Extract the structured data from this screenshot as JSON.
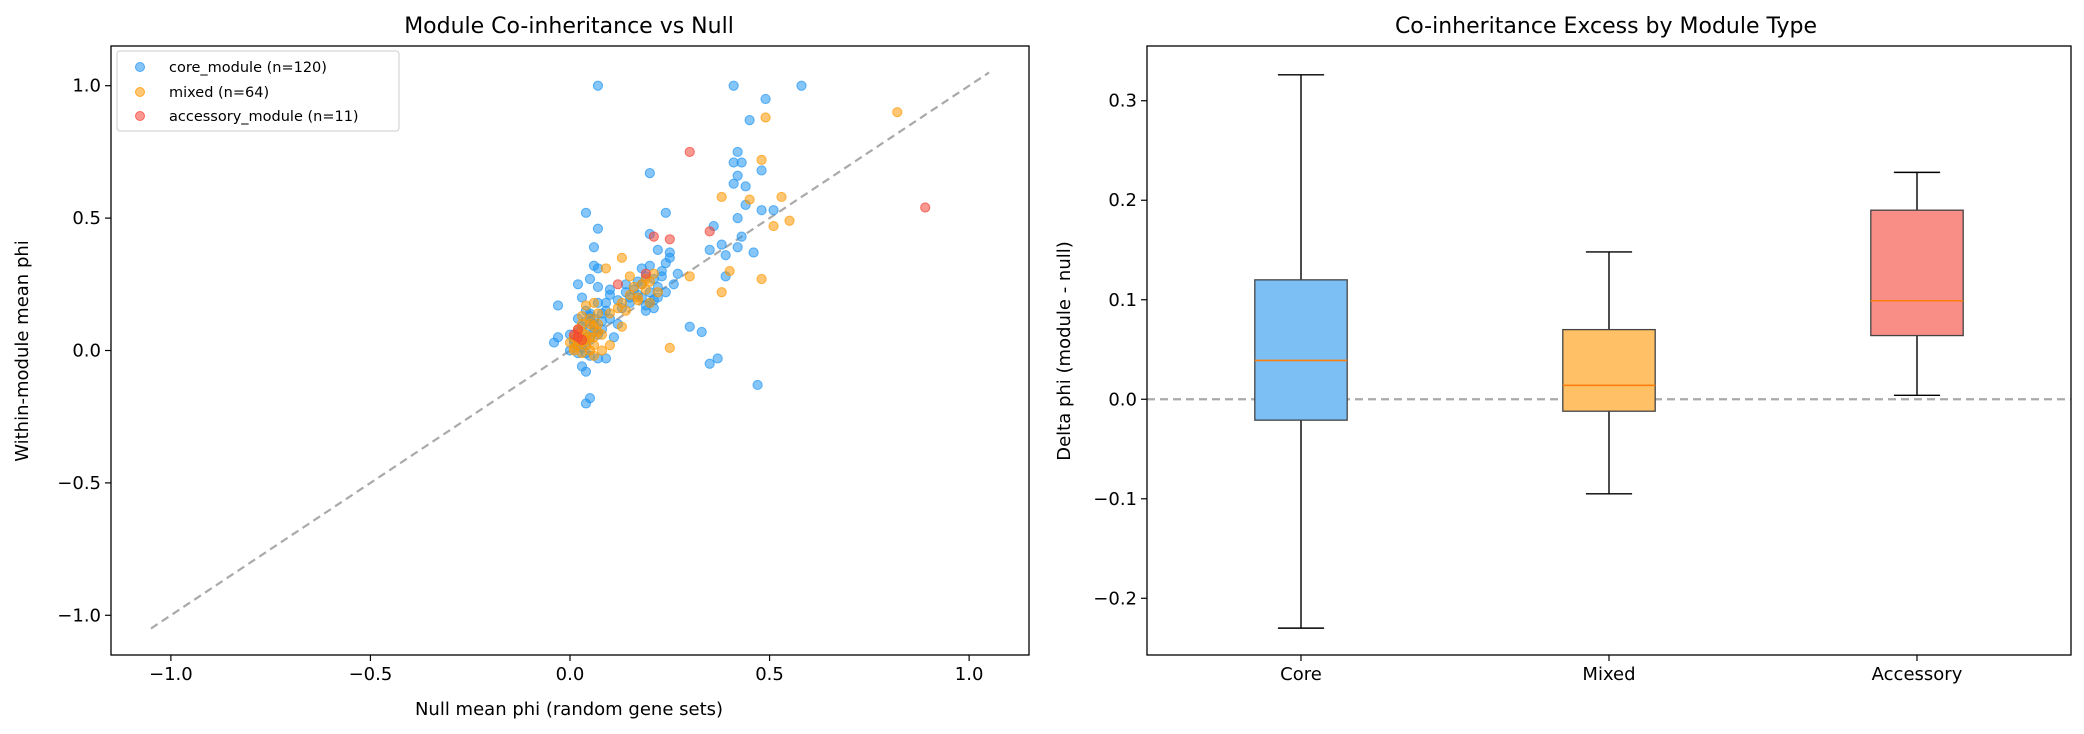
{
  "chart_data": [
    {
      "type": "scatter",
      "title": "Module Co-inheritance vs Null",
      "xlabel": "Null mean phi (random gene sets)",
      "ylabel": "Within-module mean phi",
      "xlim": [
        -1.15,
        1.15
      ],
      "ylim": [
        -1.15,
        1.15
      ],
      "xticks": [
        -1.0,
        -0.5,
        0.0,
        0.5,
        1.0
      ],
      "yticks": [
        -1.0,
        -0.5,
        0.0,
        0.5,
        1.0
      ],
      "xtick_labels": [
        "−1.0",
        "−0.5",
        "0.0",
        "0.5",
        "1.0"
      ],
      "ytick_labels": [
        "−1.0",
        "−0.5",
        "0.0",
        "0.5",
        "1.0"
      ],
      "grid": false,
      "legend_position": "upper-left",
      "reference_line": {
        "style": "dashed",
        "color": "#aaaaaa",
        "from": [
          -1.05,
          -1.05
        ],
        "to": [
          1.05,
          1.05
        ]
      },
      "series": [
        {
          "name": "core_module (n=120)",
          "color": "#2196f3",
          "points": [
            [
              0.07,
              1.0
            ],
            [
              0.41,
              1.0
            ],
            [
              0.58,
              1.0
            ],
            [
              0.49,
              0.95
            ],
            [
              0.45,
              0.87
            ],
            [
              0.42,
              0.75
            ],
            [
              0.41,
              0.71
            ],
            [
              0.43,
              0.71
            ],
            [
              0.48,
              0.68
            ],
            [
              0.2,
              0.67
            ],
            [
              0.42,
              0.66
            ],
            [
              0.41,
              0.63
            ],
            [
              0.44,
              0.62
            ],
            [
              0.44,
              0.55
            ],
            [
              0.48,
              0.53
            ],
            [
              0.51,
              0.53
            ],
            [
              0.04,
              0.52
            ],
            [
              0.24,
              0.52
            ],
            [
              0.42,
              0.5
            ],
            [
              0.07,
              0.46
            ],
            [
              0.36,
              0.47
            ],
            [
              0.2,
              0.44
            ],
            [
              0.43,
              0.43
            ],
            [
              0.38,
              0.4
            ],
            [
              0.22,
              0.38
            ],
            [
              0.25,
              0.37
            ],
            [
              0.06,
              0.39
            ],
            [
              0.42,
              0.39
            ],
            [
              0.46,
              0.37
            ],
            [
              0.39,
              0.36
            ],
            [
              0.35,
              0.38
            ],
            [
              0.24,
              0.33
            ],
            [
              0.25,
              0.35
            ],
            [
              0.06,
              0.32
            ],
            [
              0.2,
              0.32
            ],
            [
              0.23,
              0.3
            ],
            [
              0.07,
              0.31
            ],
            [
              0.19,
              0.28
            ],
            [
              0.17,
              0.26
            ],
            [
              0.39,
              0.28
            ],
            [
              0.02,
              0.25
            ],
            [
              0.05,
              0.27
            ],
            [
              0.07,
              0.24
            ],
            [
              0.1,
              0.23
            ],
            [
              0.14,
              0.22
            ],
            [
              0.17,
              0.21
            ],
            [
              0.2,
              0.22
            ],
            [
              0.22,
              0.2
            ],
            [
              0.24,
              0.22
            ],
            [
              0.18,
              0.2
            ],
            [
              0.03,
              0.2
            ],
            [
              0.07,
              0.18
            ],
            [
              0.15,
              0.18
            ],
            [
              0.21,
              0.16
            ],
            [
              0.21,
              0.19
            ],
            [
              0.19,
              0.17
            ],
            [
              0.04,
              0.15
            ],
            [
              0.05,
              0.13
            ],
            [
              0.06,
              0.12
            ],
            [
              0.08,
              0.11
            ],
            [
              0.12,
              0.1
            ],
            [
              0.02,
              0.12
            ],
            [
              0.04,
              0.11
            ],
            [
              -0.03,
              0.17
            ],
            [
              0.03,
              0.09
            ],
            [
              0.05,
              0.08
            ],
            [
              0.06,
              0.07
            ],
            [
              0.07,
              0.06
            ],
            [
              0.02,
              0.06
            ],
            [
              0.03,
              0.05
            ],
            [
              0.04,
              0.05
            ],
            [
              0.05,
              0.04
            ],
            [
              0.01,
              0.03
            ],
            [
              0.02,
              0.02
            ],
            [
              0.03,
              0.01
            ],
            [
              0.04,
              0.02
            ],
            [
              0.0,
              0.0
            ],
            [
              0.02,
              -0.01
            ],
            [
              0.04,
              -0.01
            ],
            [
              0.05,
              -0.02
            ],
            [
              0.07,
              -0.03
            ],
            [
              0.09,
              -0.03
            ],
            [
              0.03,
              -0.06
            ],
            [
              0.04,
              -0.08
            ],
            [
              0.05,
              -0.18
            ],
            [
              0.04,
              -0.2
            ],
            [
              0.3,
              0.09
            ],
            [
              0.33,
              0.07
            ],
            [
              0.35,
              -0.05
            ],
            [
              0.37,
              -0.03
            ],
            [
              0.47,
              -0.13
            ],
            [
              -0.04,
              0.03
            ],
            [
              -0.03,
              0.05
            ],
            [
              0.0,
              0.06
            ],
            [
              0.01,
              0.04
            ],
            [
              0.02,
              0.07
            ],
            [
              0.03,
              0.03
            ],
            [
              0.08,
              0.14
            ],
            [
              0.09,
              0.15
            ],
            [
              0.1,
              0.12
            ],
            [
              0.06,
              0.1
            ],
            [
              0.05,
              0.14
            ],
            [
              0.08,
              0.08
            ],
            [
              0.11,
              0.05
            ],
            [
              0.13,
              0.16
            ],
            [
              0.15,
              0.2
            ],
            [
              0.16,
              0.23
            ],
            [
              0.18,
              0.25
            ],
            [
              0.21,
              0.27
            ],
            [
              0.22,
              0.24
            ],
            [
              0.26,
              0.25
            ],
            [
              0.27,
              0.29
            ],
            [
              0.23,
              0.28
            ],
            [
              0.18,
              0.31
            ],
            [
              0.19,
              0.15
            ],
            [
              0.2,
              0.18
            ],
            [
              0.14,
              0.25
            ],
            [
              0.12,
              0.19
            ],
            [
              0.1,
              0.21
            ],
            [
              0.09,
              0.18
            ]
          ]
        },
        {
          "name": "mixed (n=64)",
          "color": "#ff9800",
          "points": [
            [
              0.82,
              0.9
            ],
            [
              0.49,
              0.88
            ],
            [
              0.48,
              0.72
            ],
            [
              0.53,
              0.58
            ],
            [
              0.45,
              0.57
            ],
            [
              0.38,
              0.58
            ],
            [
              0.55,
              0.49
            ],
            [
              0.51,
              0.47
            ],
            [
              0.13,
              0.35
            ],
            [
              0.09,
              0.31
            ],
            [
              0.4,
              0.3
            ],
            [
              0.3,
              0.28
            ],
            [
              0.48,
              0.27
            ],
            [
              0.19,
              0.27
            ],
            [
              0.2,
              0.26
            ],
            [
              0.21,
              0.29
            ],
            [
              0.18,
              0.25
            ],
            [
              0.19,
              0.23
            ],
            [
              0.16,
              0.24
            ],
            [
              0.15,
              0.21
            ],
            [
              0.38,
              0.22
            ],
            [
              0.17,
              0.19
            ],
            [
              0.13,
              0.18
            ],
            [
              0.2,
              0.18
            ],
            [
              0.14,
              0.15
            ],
            [
              0.04,
              0.17
            ],
            [
              0.06,
              0.18
            ],
            [
              0.03,
              0.13
            ],
            [
              0.07,
              0.14
            ],
            [
              0.13,
              0.09
            ],
            [
              0.03,
              0.1
            ],
            [
              0.05,
              0.12
            ],
            [
              0.06,
              0.09
            ],
            [
              0.07,
              0.07
            ],
            [
              0.08,
              0.06
            ],
            [
              0.05,
              0.05
            ],
            [
              0.04,
              0.04
            ],
            [
              0.02,
              0.06
            ],
            [
              0.03,
              0.03
            ],
            [
              0.01,
              0.05
            ],
            [
              0.02,
              0.02
            ],
            [
              0.04,
              0.02
            ],
            [
              0.0,
              0.03
            ],
            [
              0.01,
              0.0
            ],
            [
              0.03,
              -0.01
            ],
            [
              0.05,
              0.0
            ],
            [
              0.06,
              0.02
            ],
            [
              0.1,
              0.02
            ],
            [
              0.25,
              0.01
            ],
            [
              0.06,
              -0.02
            ],
            [
              0.08,
              0.0
            ],
            [
              0.02,
              0.08
            ],
            [
              0.05,
              0.1
            ],
            [
              0.17,
              0.2
            ],
            [
              0.22,
              0.22
            ],
            [
              0.15,
              0.28
            ],
            [
              0.1,
              0.14
            ],
            [
              0.02,
              0.04
            ],
            [
              0.06,
              0.05
            ],
            [
              0.03,
              0.07
            ],
            [
              0.01,
              0.01
            ],
            [
              0.04,
              0.06
            ],
            [
              0.07,
              0.1
            ],
            [
              0.12,
              0.16
            ]
          ]
        },
        {
          "name": "accessory_module (n=11)",
          "color": "#f44336",
          "points": [
            [
              0.3,
              0.75
            ],
            [
              0.89,
              0.54
            ],
            [
              0.35,
              0.45
            ],
            [
              0.21,
              0.43
            ],
            [
              0.25,
              0.42
            ],
            [
              0.19,
              0.29
            ],
            [
              0.12,
              0.25
            ],
            [
              0.02,
              0.08
            ],
            [
              0.01,
              0.06
            ],
            [
              0.02,
              0.05
            ],
            [
              0.03,
              0.04
            ]
          ]
        }
      ]
    },
    {
      "type": "box",
      "title": "Co-inheritance Excess by Module Type",
      "xlabel": "",
      "ylabel": "Delta phi (module - null)",
      "ylim": [
        -0.257,
        0.355
      ],
      "yticks": [
        -0.2,
        -0.1,
        0.0,
        0.1,
        0.2,
        0.3
      ],
      "ytick_labels": [
        "−0.2",
        "−0.1",
        "0.0",
        "0.1",
        "0.2",
        "0.3"
      ],
      "grid": false,
      "zero_line": {
        "style": "dashed",
        "color": "#aaaaaa",
        "value": 0.0
      },
      "median_color": "#ff7f0e",
      "categories": [
        "Core",
        "Mixed",
        "Accessory"
      ],
      "boxes": [
        {
          "category": "Core",
          "whisker_low": -0.23,
          "q1": -0.021,
          "median": 0.039,
          "q3": 0.12,
          "whisker_high": 0.326,
          "color": "#7bbff5"
        },
        {
          "category": "Mixed",
          "whisker_low": -0.095,
          "q1": -0.012,
          "median": 0.014,
          "q3": 0.07,
          "whisker_high": 0.148,
          "color": "#ffc066"
        },
        {
          "category": "Accessory",
          "whisker_low": 0.004,
          "q1": 0.064,
          "median": 0.099,
          "q3": 0.19,
          "whisker_high": 0.228,
          "color": "#f98e87"
        }
      ]
    }
  ]
}
